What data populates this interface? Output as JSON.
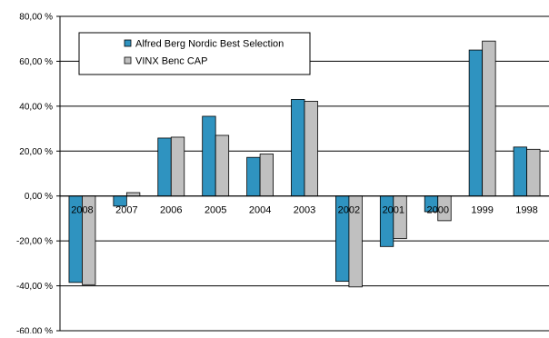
{
  "chart_data": {
    "type": "bar",
    "title": "",
    "xlabel": "",
    "ylabel": "",
    "categories": [
      "2008",
      "2007",
      "2006",
      "2005",
      "2004",
      "2003",
      "2002",
      "2001",
      "2000",
      "1999",
      "1998"
    ],
    "series": [
      {
        "name": "Alfred Berg Nordic Best Selection",
        "color": "#2f93c0",
        "values": [
          -38.5,
          -4.5,
          25.8,
          35.5,
          17.2,
          43.0,
          -38.0,
          -22.5,
          -7.0,
          65.0,
          21.8
        ]
      },
      {
        "name": "VINX Benc CAP",
        "color": "#c0c0c0",
        "values": [
          -39.5,
          1.5,
          26.2,
          27.0,
          18.7,
          42.2,
          -40.5,
          -19.0,
          -11.0,
          69.0,
          20.8
        ]
      }
    ],
    "ylim": [
      -60,
      80
    ],
    "yticks": [
      80,
      60,
      40,
      20,
      0,
      -20,
      -40,
      -60
    ],
    "ytick_labels": [
      "80,00 %",
      "60,00 %",
      "40,00 %",
      "20,00 %",
      "0,00 %",
      "-20,00 %",
      "-40,00 %",
      "-60,00 %"
    ],
    "grid": true,
    "legend_position": "top-left"
  }
}
